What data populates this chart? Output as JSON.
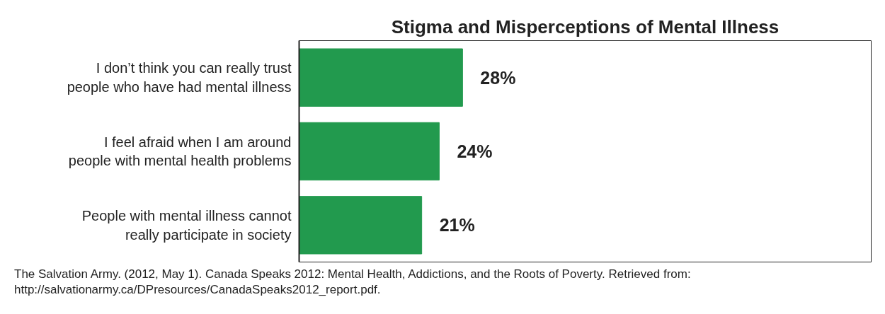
{
  "chart_data": {
    "type": "bar",
    "orientation": "horizontal",
    "title": "Stigma and Misperceptions of Mental Illness",
    "categories": [
      "I don’t think you can really trust people who have had mental illness",
      "I feel afraid when I am around people with mental health problems",
      "People with mental illness cannot really participate in society"
    ],
    "values": [
      28,
      24,
      21
    ],
    "color": "#229a4e",
    "value_labels": [
      "28%",
      "24%",
      "21%"
    ],
    "tick_labels": "y",
    "annotations": [
      "The Salvation Army. (2012, May 1). Canada Speaks 2012: Mental Health, Addictions, and the Roots of Poverty. Retrieved from: http://salvationarmy.ca/DPresources/CanadaSpeaks2012_report.pdf."
    ]
  }
}
